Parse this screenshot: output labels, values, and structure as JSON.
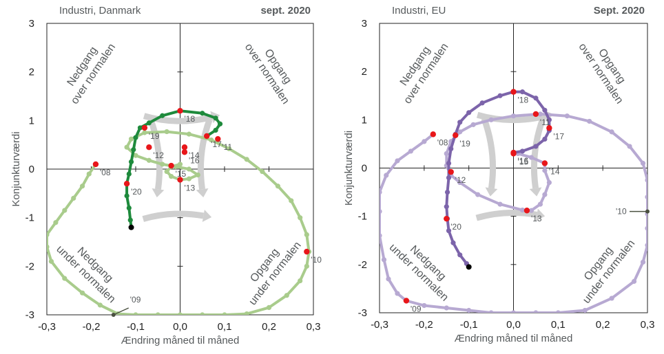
{
  "chart_data": [
    {
      "type": "scatter",
      "title": "Industri, Danmark",
      "date_label": "sept. 2020",
      "xlabel": "Ændring måned til måned",
      "ylabel": "Konjunkturværdi",
      "xlim": [
        -0.3,
        0.3
      ],
      "ylim": [
        -3,
        3
      ],
      "x_ticks": [
        "-0,3",
        "-0,2",
        "-0,1",
        "0,0",
        "0,1",
        "0,2",
        "0,3"
      ],
      "y_ticks": [
        "3",
        "2",
        "1",
        "0",
        "-1",
        "-2",
        "-3"
      ],
      "quadrant_labels": [
        "Nedgang over normalen",
        "Opgang over normalen",
        "Nedgang under normalen",
        "Opgang under normalen"
      ],
      "series": [
        {
          "color": "#a9cc8c",
          "points": [
            [
              -0.19,
              0.1
            ],
            [
              -0.205,
              -0.1
            ],
            [
              -0.22,
              -0.35
            ],
            [
              -0.24,
              -0.6
            ],
            [
              -0.26,
              -0.85
            ],
            [
              -0.28,
              -1.1
            ],
            [
              -0.3,
              -1.35
            ],
            [
              -0.3,
              -1.6
            ],
            [
              -0.29,
              -1.9
            ],
            [
              -0.26,
              -2.25
            ],
            [
              -0.22,
              -2.55
            ],
            [
              -0.18,
              -2.8
            ],
            [
              -0.14,
              -2.98
            ],
            [
              -0.1,
              -3.0
            ],
            [
              -0.05,
              -3.0
            ],
            [
              0.0,
              -3.0
            ],
            [
              0.05,
              -3.0
            ],
            [
              0.1,
              -3.0
            ],
            [
              0.15,
              -2.98
            ],
            [
              0.2,
              -2.85
            ],
            [
              0.24,
              -2.6
            ],
            [
              0.27,
              -2.3
            ],
            [
              0.285,
              -2.0
            ],
            [
              0.29,
              -1.7
            ],
            [
              0.285,
              -1.35
            ],
            [
              0.27,
              -1.0
            ],
            [
              0.25,
              -0.65
            ],
            [
              0.22,
              -0.35
            ],
            [
              0.185,
              -0.05
            ],
            [
              0.15,
              0.2
            ],
            [
              0.11,
              0.42
            ],
            [
              0.07,
              0.6
            ],
            [
              0.02,
              0.72
            ],
            [
              -0.03,
              0.77
            ],
            [
              -0.08,
              0.75
            ],
            [
              -0.11,
              0.62
            ],
            [
              -0.12,
              0.45
            ],
            [
              -0.1,
              0.28
            ],
            [
              -0.07,
              0.18
            ],
            [
              -0.04,
              0.1
            ],
            [
              -0.01,
              0.05
            ],
            [
              0.02,
              0.0
            ],
            [
              0.04,
              -0.12
            ],
            [
              0.02,
              -0.2
            ],
            [
              0.0,
              -0.22
            ],
            [
              -0.02,
              -0.15
            ],
            [
              -0.03,
              -0.05
            ],
            [
              -0.02,
              0.05
            ],
            [
              0.0,
              0.1
            ]
          ],
          "highlights": [
            {
              "x": -0.19,
              "y": 0.1,
              "label": "'08"
            },
            {
              "x": 0.285,
              "y": -1.7,
              "label": "'10"
            },
            {
              "x": 0.0,
              "y": -0.22,
              "label": "'13"
            }
          ]
        },
        {
          "color": "#1e8a3c",
          "points": [
            [
              0.06,
              0.68
            ],
            [
              0.08,
              0.8
            ],
            [
              0.09,
              0.93
            ],
            [
              0.08,
              1.05
            ],
            [
              0.05,
              1.15
            ],
            [
              0.0,
              1.2
            ],
            [
              -0.04,
              1.1
            ],
            [
              -0.07,
              0.95
            ],
            [
              -0.09,
              0.85
            ],
            [
              -0.1,
              0.65
            ],
            [
              -0.105,
              0.4
            ],
            [
              -0.11,
              0.15
            ],
            [
              -0.115,
              -0.1
            ],
            [
              -0.12,
              -0.3
            ],
            [
              -0.12,
              -0.55
            ],
            [
              -0.115,
              -0.8
            ],
            [
              -0.112,
              -1.05
            ],
            [
              -0.11,
              -1.2
            ]
          ],
          "highlights": [
            {
              "x": 0.0,
              "y": 1.2,
              "label": "'18"
            },
            {
              "x": -0.08,
              "y": 0.85,
              "label": "'19"
            },
            {
              "x": -0.12,
              "y": -0.3,
              "label": "'20"
            },
            {
              "x": -0.07,
              "y": 0.45,
              "label": "'12"
            },
            {
              "x": 0.01,
              "y": 0.45,
              "label": "'14"
            },
            {
              "x": -0.02,
              "y": 0.07,
              "label": "'15"
            },
            {
              "x": 0.01,
              "y": 0.35,
              "label": "'16"
            },
            {
              "x": 0.06,
              "y": 0.68,
              "label": "'17"
            },
            {
              "x": 0.085,
              "y": 0.62,
              "label": "'11"
            }
          ],
          "endpoint": {
            "x": -0.11,
            "y": -1.2
          }
        }
      ],
      "annotation": {
        "label": "'09",
        "x": -0.15,
        "y": -3.0
      }
    },
    {
      "type": "scatter",
      "title": "Industri, EU",
      "date_label": "Sept. 2020",
      "xlabel": "Ændring måned til måned",
      "ylabel": "Konjunkturværdi",
      "xlim": [
        -0.3,
        0.3
      ],
      "ylim": [
        -3,
        3
      ],
      "x_ticks": [
        "-0,3",
        "-0,2",
        "-0,1",
        "0,0",
        "0,1",
        "0,2",
        "0,3"
      ],
      "y_ticks": [
        "3",
        "2",
        "1",
        "0",
        "-1",
        "-2",
        "-3"
      ],
      "quadrant_labels": [
        "Nedgang over normalen",
        "Opgang over normalen",
        "Nedgang under normalen",
        "Opgang under normalen"
      ],
      "series": [
        {
          "color": "#b7a9d2",
          "points": [
            [
              -0.18,
              0.7
            ],
            [
              -0.2,
              0.55
            ],
            [
              -0.23,
              0.35
            ],
            [
              -0.26,
              0.15
            ],
            [
              -0.285,
              -0.15
            ],
            [
              -0.3,
              -0.5
            ],
            [
              -0.3,
              -0.9
            ],
            [
              -0.3,
              -1.4
            ],
            [
              -0.29,
              -1.9
            ],
            [
              -0.28,
              -2.3
            ],
            [
              -0.26,
              -2.6
            ],
            [
              -0.24,
              -2.75
            ],
            [
              -0.2,
              -2.85
            ],
            [
              -0.15,
              -2.9
            ],
            [
              -0.1,
              -2.95
            ],
            [
              -0.05,
              -3.0
            ],
            [
              0.0,
              -3.0
            ],
            [
              0.05,
              -3.0
            ],
            [
              0.1,
              -3.0
            ],
            [
              0.16,
              -2.95
            ],
            [
              0.22,
              -2.7
            ],
            [
              0.27,
              -2.35
            ],
            [
              0.29,
              -1.95
            ],
            [
              0.3,
              -1.6
            ],
            [
              0.3,
              -1.25
            ],
            [
              0.3,
              -0.95
            ],
            [
              0.3,
              -0.6
            ],
            [
              0.3,
              -0.25
            ],
            [
              0.29,
              0.1
            ],
            [
              0.26,
              0.45
            ],
            [
              0.22,
              0.75
            ],
            [
              0.17,
              0.97
            ],
            [
              0.12,
              1.08
            ],
            [
              0.06,
              1.12
            ],
            [
              0.0,
              1.08
            ],
            [
              -0.05,
              1.0
            ],
            [
              -0.09,
              0.9
            ],
            [
              -0.12,
              0.75
            ],
            [
              -0.14,
              0.55
            ],
            [
              -0.15,
              0.3
            ],
            [
              -0.15,
              0.05
            ],
            [
              -0.14,
              -0.15
            ],
            [
              -0.12,
              -0.3
            ],
            [
              -0.08,
              -0.55
            ],
            [
              -0.03,
              -0.75
            ],
            [
              0.02,
              -0.87
            ],
            [
              0.04,
              -0.88
            ],
            [
              0.06,
              -0.75
            ],
            [
              0.07,
              -0.55
            ],
            [
              0.08,
              -0.3
            ],
            [
              0.07,
              -0.05
            ],
            [
              0.07,
              0.1
            ],
            [
              0.04,
              0.22
            ],
            [
              0.01,
              0.3
            ],
            [
              0.0,
              0.3
            ]
          ],
          "highlights": [
            {
              "x": -0.18,
              "y": 0.7,
              "label": "'08"
            },
            {
              "x": -0.24,
              "y": -2.75,
              "label": "'09"
            },
            {
              "x": 0.03,
              "y": -0.88,
              "label": "'13"
            },
            {
              "x": 0.07,
              "y": 0.1,
              "label": "'14"
            },
            {
              "x": 0.0,
              "y": 0.3,
              "label": "'15"
            }
          ]
        },
        {
          "color": "#7c64aa",
          "points": [
            [
              0.0,
              0.32
            ],
            [
              0.02,
              0.35
            ],
            [
              0.05,
              0.45
            ],
            [
              0.07,
              0.6
            ],
            [
              0.08,
              0.78
            ],
            [
              0.08,
              1.0
            ],
            [
              0.07,
              1.2
            ],
            [
              0.05,
              1.45
            ],
            [
              0.02,
              1.58
            ],
            [
              0.0,
              1.58
            ],
            [
              -0.03,
              1.5
            ],
            [
              -0.07,
              1.35
            ],
            [
              -0.1,
              1.15
            ],
            [
              -0.12,
              0.95
            ],
            [
              -0.13,
              0.7
            ],
            [
              -0.14,
              0.4
            ],
            [
              -0.145,
              0.1
            ],
            [
              -0.145,
              -0.2
            ],
            [
              -0.148,
              -0.5
            ],
            [
              -0.15,
              -0.8
            ],
            [
              -0.148,
              -1.05
            ],
            [
              -0.145,
              -1.3
            ],
            [
              -0.135,
              -1.55
            ],
            [
              -0.12,
              -1.8
            ],
            [
              -0.105,
              -1.98
            ],
            [
              -0.1,
              -2.05
            ]
          ],
          "highlights": [
            {
              "x": 0.0,
              "y": 1.58,
              "label": "'18"
            },
            {
              "x": 0.05,
              "y": 1.12,
              "label": "'11"
            },
            {
              "x": 0.08,
              "y": 0.83,
              "label": "'17"
            },
            {
              "x": -0.13,
              "y": 0.68,
              "label": "'19"
            },
            {
              "x": -0.14,
              "y": -0.08,
              "label": "'12"
            },
            {
              "x": -0.15,
              "y": -1.05,
              "label": "'20"
            },
            {
              "x": 0.0,
              "y": 0.32,
              "label": "'16"
            }
          ],
          "endpoint": {
            "x": -0.1,
            "y": -2.05
          }
        }
      ],
      "annotation": {
        "label": "'10",
        "x": 0.3,
        "y": -0.9
      }
    }
  ]
}
